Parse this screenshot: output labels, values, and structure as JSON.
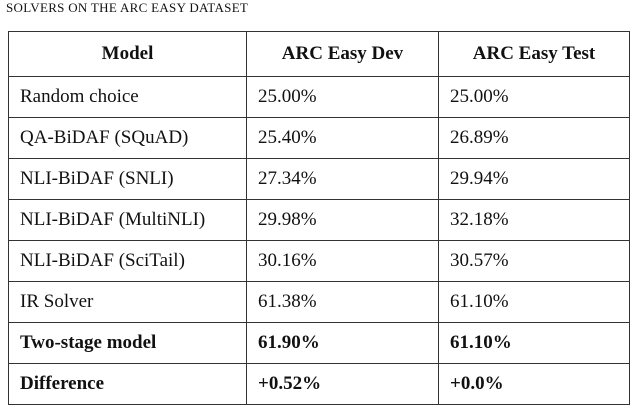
{
  "caption": "SOLVERS ON THE ARC EASY DATASET",
  "table": {
    "header": [
      "Model",
      "ARC Easy Dev",
      "ARC Easy Test"
    ],
    "rows": [
      [
        "Random choice",
        "25.00%",
        "25.00%"
      ],
      [
        "QA-BiDAF (SQuAD)",
        "25.40%",
        "26.89%"
      ],
      [
        "NLI-BiDAF (SNLI)",
        "27.34%",
        "29.94%"
      ],
      [
        "NLI-BiDAF (MultiNLI)",
        "29.98%",
        "32.18%"
      ],
      [
        "NLI-BiDAF (SciTail)",
        "30.16%",
        "30.57%"
      ],
      [
        "IR Solver",
        "61.38%",
        "61.10%"
      ],
      [
        "Two-stage model",
        "61.90%",
        "61.10%"
      ],
      [
        "Difference",
        "+0.52%",
        "+0.0%"
      ]
    ]
  }
}
